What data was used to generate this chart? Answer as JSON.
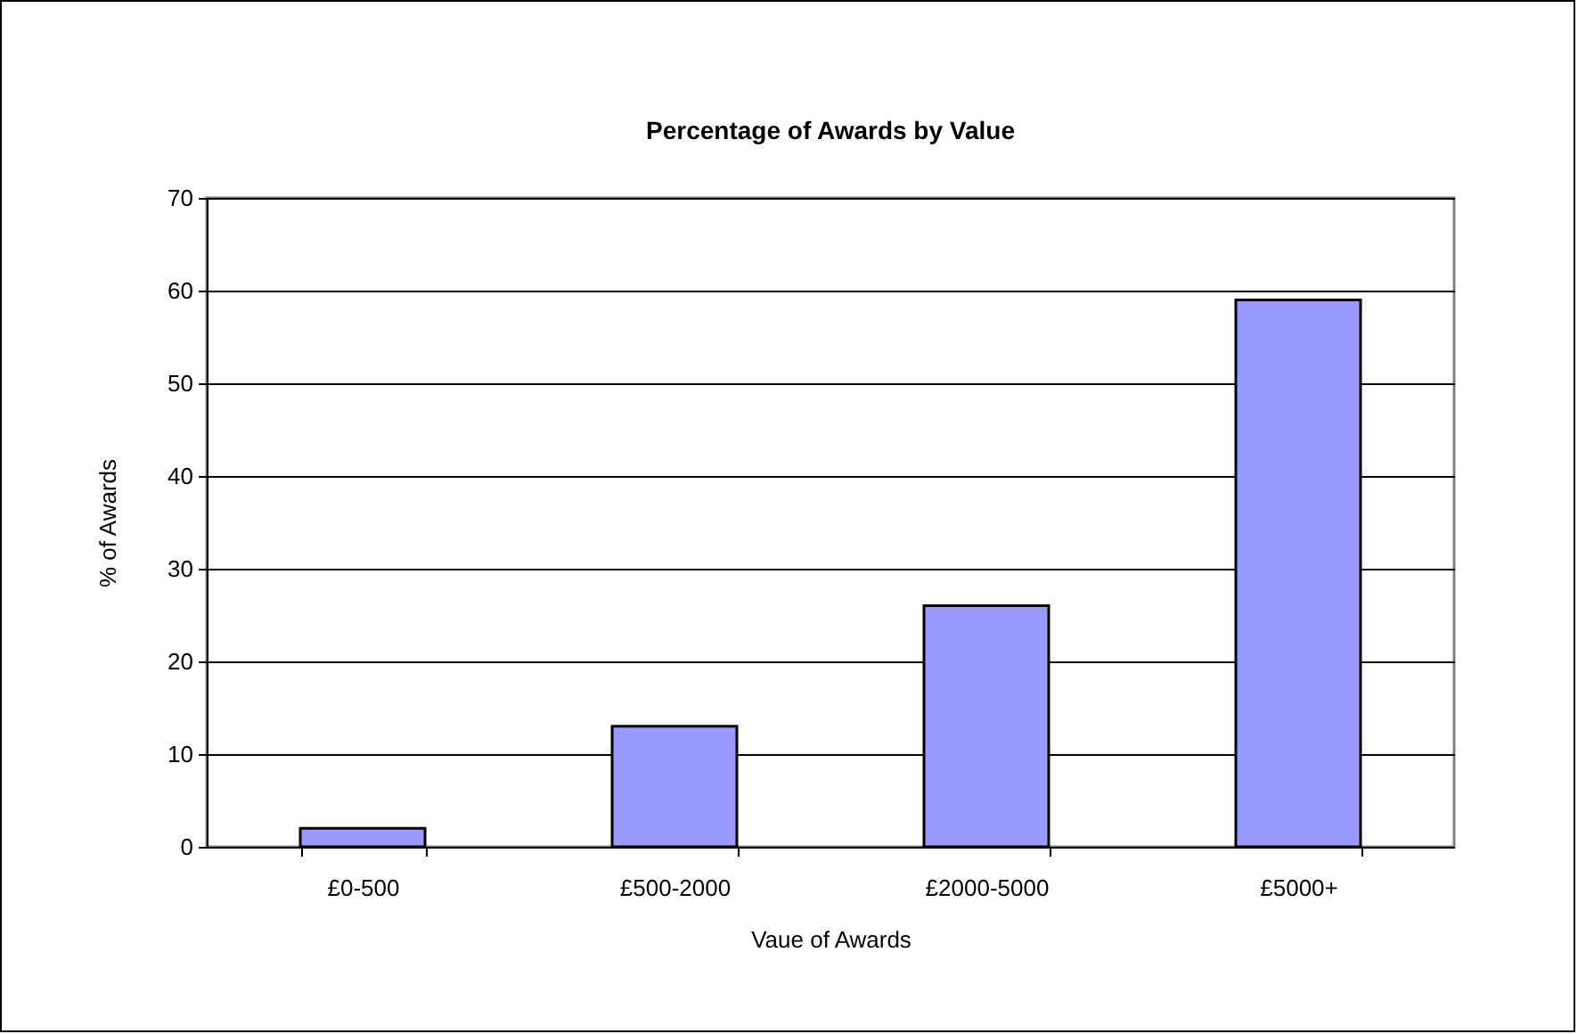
{
  "chart_data": {
    "type": "bar",
    "title": "Percentage of Awards by Value",
    "xlabel": "Vaue of Awards",
    "ylabel": "% of Awards",
    "categories": [
      "£0-500",
      "£500-2000",
      "£2000-5000",
      "£5000+"
    ],
    "values": [
      2,
      13,
      26,
      59
    ],
    "color": "#9999ff",
    "ylim": [
      0,
      70
    ],
    "yticks": [
      0,
      10,
      20,
      30,
      40,
      50,
      60,
      70
    ],
    "grid": "y"
  }
}
